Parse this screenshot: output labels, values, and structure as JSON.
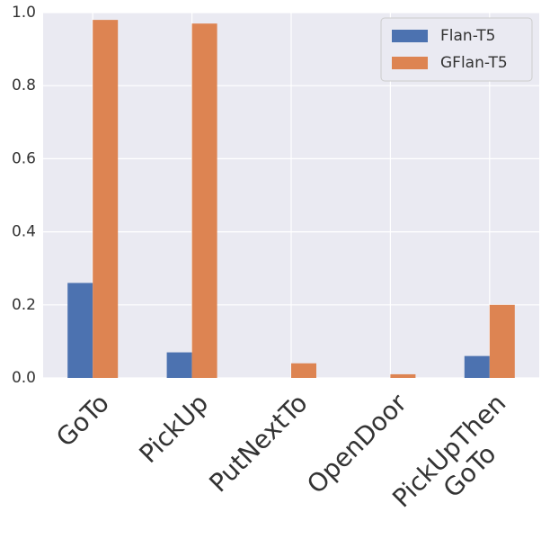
{
  "chart_data": {
    "type": "bar",
    "categories": [
      "GoTo",
      "PickUp",
      "PutNextTo",
      "OpenDoor",
      "PickUpThen\nGoTo"
    ],
    "series": [
      {
        "name": "Flan-T5",
        "color": "#4c72b0",
        "values": [
          0.26,
          0.07,
          0,
          0,
          0.06
        ]
      },
      {
        "name": "GFlan-T5",
        "color": "#dd8452",
        "values": [
          0.98,
          0.97,
          0.04,
          0.01,
          0.2
        ]
      }
    ],
    "ylim": [
      0,
      1
    ],
    "yticks": [
      {
        "value": 0,
        "label": "0.0"
      },
      0.2,
      0.4,
      0.6,
      0.8,
      {
        "value": 1,
        "label": "1.0"
      }
    ],
    "grid": true,
    "legend": "upper right"
  }
}
